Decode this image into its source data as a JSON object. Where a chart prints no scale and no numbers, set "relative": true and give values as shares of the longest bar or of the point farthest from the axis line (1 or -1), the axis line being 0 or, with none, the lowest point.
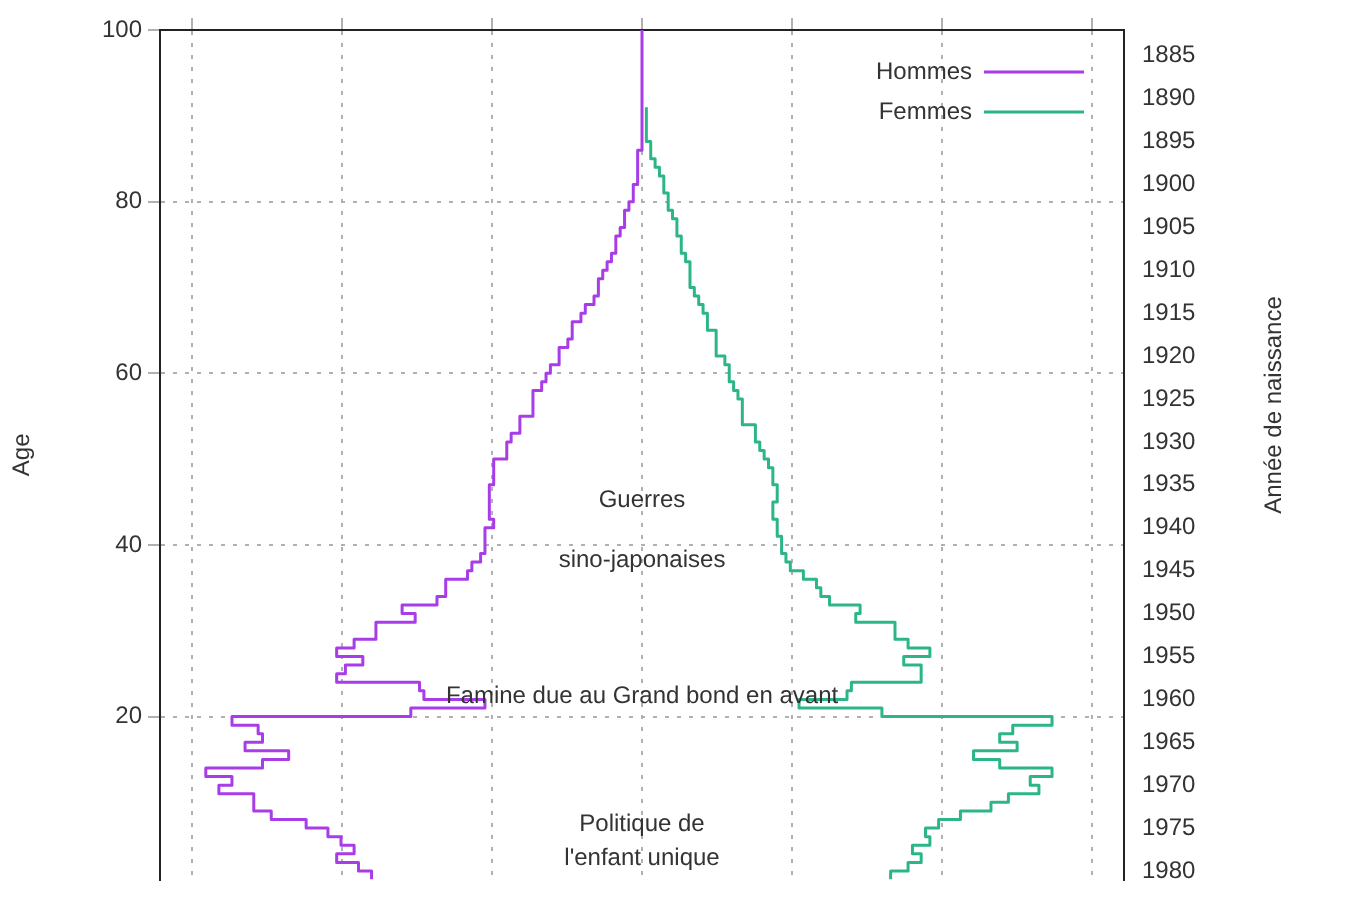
{
  "chart_data": {
    "type": "step",
    "orientation": "horizontal",
    "relative": true,
    "ylabel": "Age",
    "y2label": "Année de naissance",
    "x": [
      1,
      2,
      3,
      4,
      5,
      6,
      7,
      8,
      9,
      10,
      11,
      12,
      13,
      14,
      15,
      16,
      17,
      18,
      19,
      20,
      21,
      22,
      23,
      24,
      25,
      26,
      27,
      28,
      29,
      30,
      31,
      32,
      33,
      34,
      35,
      36,
      37,
      38,
      39,
      40,
      41,
      42,
      43,
      44,
      45,
      46,
      47,
      48,
      49,
      50,
      51,
      52,
      53,
      54,
      55,
      56,
      57,
      58,
      59,
      60,
      61,
      62,
      63,
      64,
      65,
      66,
      67,
      68,
      69,
      70,
      71,
      72,
      73,
      74,
      75,
      76,
      77,
      78,
      79,
      80,
      81,
      82,
      83,
      84,
      85,
      86,
      87,
      88,
      89,
      90,
      91,
      92,
      93,
      94,
      95,
      96,
      97,
      98,
      99,
      100
    ],
    "series": [
      {
        "name": "Hommes",
        "color": "#a83de8",
        "values": [
          -0.62,
          -0.65,
          -0.7,
          -0.66,
          -0.69,
          -0.72,
          -0.77,
          -0.85,
          -0.89,
          -0.89,
          -0.97,
          -0.94,
          -1,
          -0.87,
          -0.81,
          -0.91,
          -0.87,
          -0.88,
          -0.94,
          -0.53,
          -0.36,
          -0.5,
          -0.51,
          -0.7,
          -0.68,
          -0.64,
          -0.7,
          -0.66,
          -0.61,
          -0.61,
          -0.52,
          -0.55,
          -0.47,
          -0.45,
          -0.45,
          -0.4,
          -0.39,
          -0.37,
          -0.36,
          -0.36,
          -0.36,
          -0.34,
          -0.35,
          -0.35,
          -0.35,
          -0.35,
          -0.34,
          -0.34,
          -0.34,
          -0.31,
          -0.31,
          -0.3,
          -0.28,
          -0.28,
          -0.25,
          -0.25,
          -0.25,
          -0.23,
          -0.22,
          -0.21,
          -0.19,
          -0.19,
          -0.17,
          -0.16,
          -0.16,
          -0.14,
          -0.13,
          -0.11,
          -0.1,
          -0.1,
          -0.09,
          -0.08,
          -0.07,
          -0.06,
          -0.06,
          -0.05,
          -0.04,
          -0.04,
          -0.03,
          -0.02,
          -0.02,
          -0.01,
          -0.01,
          -0.01,
          -0.01,
          0,
          0,
          0,
          0,
          0,
          0,
          0,
          0,
          0,
          0,
          0,
          0,
          0,
          0,
          0
        ]
      },
      {
        "name": "Femmes",
        "color": "#2db58a",
        "values": [
          0.57,
          0.61,
          0.64,
          0.62,
          0.66,
          0.65,
          0.68,
          0.73,
          0.8,
          0.84,
          0.91,
          0.89,
          0.94,
          0.82,
          0.76,
          0.86,
          0.82,
          0.85,
          0.94,
          0.55,
          0.36,
          0.47,
          0.48,
          0.64,
          0.64,
          0.6,
          0.66,
          0.61,
          0.58,
          0.58,
          0.49,
          0.5,
          0.43,
          0.41,
          0.4,
          0.37,
          0.34,
          0.33,
          0.32,
          0.32,
          0.31,
          0.31,
          0.3,
          0.3,
          0.31,
          0.31,
          0.3,
          0.3,
          0.29,
          0.28,
          0.27,
          0.26,
          0.26,
          0.23,
          0.23,
          0.23,
          0.22,
          0.21,
          0.2,
          0.2,
          0.19,
          0.17,
          0.17,
          0.17,
          0.15,
          0.15,
          0.14,
          0.13,
          0.12,
          0.11,
          0.11,
          0.11,
          0.1,
          0.09,
          0.09,
          0.08,
          0.08,
          0.07,
          0.06,
          0.06,
          0.05,
          0.05,
          0.04,
          0.03,
          0.02,
          0.02,
          0.01,
          0.01,
          0.01,
          0.01,
          0.01,
          null,
          null,
          null,
          null,
          null,
          null,
          null,
          null,
          null
        ]
      }
    ],
    "ylim": [
      1,
      100
    ],
    "yticks": [
      20,
      40,
      60,
      80,
      100
    ],
    "y2lim": [
      1981,
      1882
    ],
    "y2ticks": [
      1885,
      1890,
      1895,
      1900,
      1905,
      1910,
      1915,
      1920,
      1925,
      1930,
      1935,
      1940,
      1945,
      1950,
      1955,
      1960,
      1965,
      1970,
      1975,
      1980
    ],
    "annotations": [
      "Guerres",
      "sino-japonaises",
      "Famine due au Grand bond en avant",
      "Politique de",
      "l'enfant unique"
    ],
    "grid": true,
    "legend": "top right",
    "marker": "none",
    "line_style": "solid"
  }
}
